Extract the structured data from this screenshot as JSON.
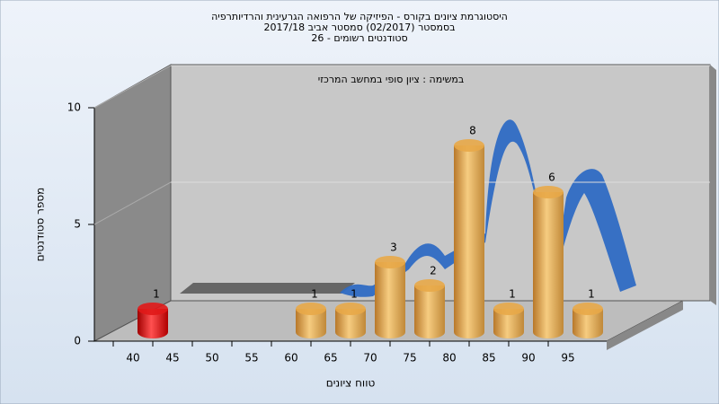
{
  "chart_data": {
    "type": "bar",
    "title": "היסטוגרמת ציונים בקורס - הפיזיקה של הרפואה הגרעינית והרדיותרפיה",
    "subtitle": "בסמסטר  (02/2017)  סמסטר אביב 2017/18",
    "subtitle2": "סטודנטים רשומים - 26",
    "annotation": "במשימה : ציון סופי במחשב המרכזי",
    "x_label": "טווח ציונים",
    "y_label": "מספר סטודנטים",
    "categories": [
      "40",
      "45",
      "50",
      "55",
      "60",
      "65",
      "70",
      "75",
      "80",
      "85",
      "90",
      "95"
    ],
    "values": [
      1,
      0,
      0,
      0,
      1,
      1,
      3,
      2,
      8,
      1,
      6,
      1
    ],
    "colors": [
      "#e01818",
      "#e8a848",
      "#e8a848",
      "#e8a848",
      "#e8a848",
      "#e8a848",
      "#e8a848",
      "#e8a848",
      "#e8a848",
      "#e8a848",
      "#e8a848",
      "#e8a848"
    ],
    "ylim": [
      0,
      10
    ],
    "yticks": [
      0,
      5,
      10
    ],
    "grid": true
  }
}
